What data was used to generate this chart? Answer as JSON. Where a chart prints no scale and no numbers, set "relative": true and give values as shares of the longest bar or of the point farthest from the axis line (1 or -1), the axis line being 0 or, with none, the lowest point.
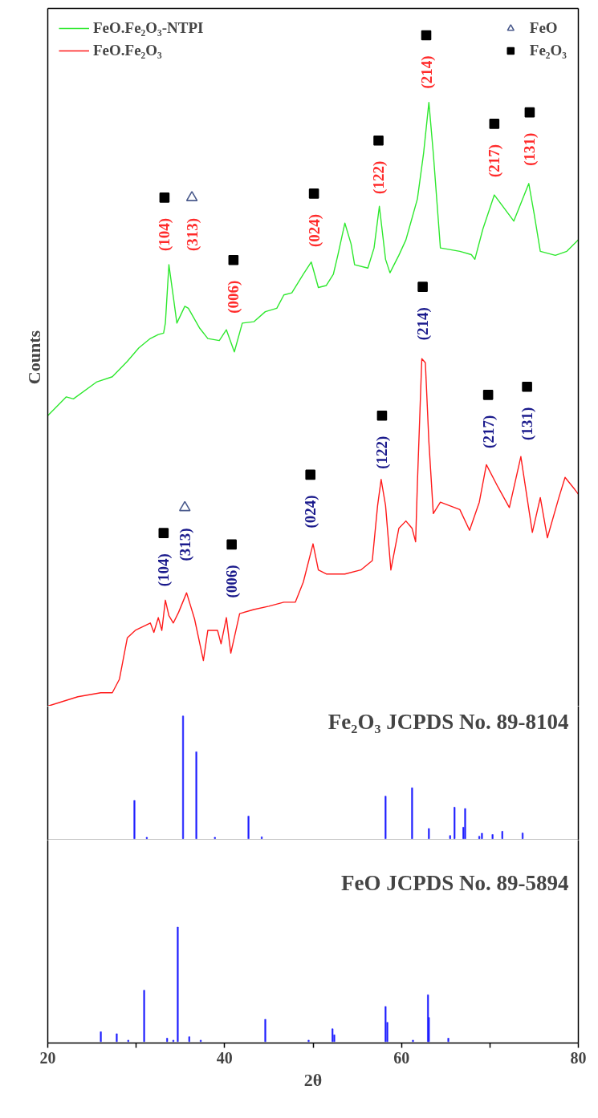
{
  "chart_data": [
    {
      "type": "line",
      "ylabel": "Counts",
      "relative": true,
      "xlim": [
        20,
        80
      ],
      "tick_labels": false,
      "legend": "top",
      "grid": false,
      "series": [
        {
          "name": "FeO.Fe₂O₃-NTPI",
          "color": "#2ee82e",
          "x": [
            20.0,
            22.1,
            22.9,
            25.5,
            27.3,
            29.0,
            30.3,
            31.6,
            32.5,
            33.1,
            33.3,
            33.7,
            34.2,
            34.6,
            35.5,
            35.9,
            37.2,
            38.1,
            39.4,
            40.2,
            41.1,
            42.0,
            43.3,
            44.6,
            45.9,
            46.7,
            47.6,
            48.9,
            49.8,
            50.6,
            51.5,
            52.3,
            52.8,
            53.6,
            54.3,
            54.7,
            56.2,
            56.9,
            57.5,
            58.2,
            58.7,
            59.7,
            60.5,
            61.8,
            62.5,
            63.1,
            63.6,
            64.4,
            66.6,
            67.9,
            68.3,
            69.2,
            70.5,
            72.7,
            74.4,
            75.0,
            75.7,
            77.4,
            78.7,
            80.0
          ],
          "values": [
            0.433,
            0.461,
            0.458,
            0.483,
            0.491,
            0.514,
            0.534,
            0.548,
            0.554,
            0.556,
            0.571,
            0.658,
            0.61,
            0.571,
            0.596,
            0.593,
            0.563,
            0.548,
            0.545,
            0.561,
            0.528,
            0.571,
            0.573,
            0.588,
            0.593,
            0.613,
            0.616,
            0.644,
            0.662,
            0.624,
            0.627,
            0.644,
            0.672,
            0.72,
            0.689,
            0.658,
            0.653,
            0.683,
            0.745,
            0.666,
            0.646,
            0.672,
            0.695,
            0.756,
            0.824,
            0.9,
            0.824,
            0.683,
            0.678,
            0.673,
            0.666,
            0.711,
            0.762,
            0.723,
            0.779,
            0.734,
            0.678,
            0.672,
            0.678,
            0.695
          ]
        },
        {
          "name": "FeO.Fe₂O₃",
          "color": "#ff1a1a",
          "x": [
            20.0,
            23.4,
            26.0,
            27.3,
            28.1,
            29.0,
            29.9,
            31.6,
            32.0,
            32.5,
            32.9,
            33.3,
            33.7,
            34.2,
            34.8,
            35.7,
            36.6,
            37.6,
            38.1,
            39.2,
            39.6,
            40.2,
            40.7,
            41.7,
            43.3,
            45.0,
            46.7,
            48.0,
            48.9,
            50.0,
            50.6,
            51.5,
            53.6,
            55.4,
            56.7,
            57.3,
            57.7,
            58.2,
            58.8,
            59.7,
            60.5,
            61.2,
            61.6,
            61.8,
            62.3,
            62.7,
            63.1,
            63.6,
            64.4,
            66.6,
            67.7,
            68.8,
            69.6,
            70.9,
            72.2,
            73.5,
            74.8,
            75.7,
            76.5,
            77.8,
            78.5,
            79.6,
            80.0
          ],
          "values": [
            0.0,
            0.014,
            0.02,
            0.02,
            0.04,
            0.102,
            0.113,
            0.124,
            0.11,
            0.132,
            0.113,
            0.158,
            0.135,
            0.124,
            0.14,
            0.169,
            0.13,
            0.068,
            0.113,
            0.113,
            0.093,
            0.132,
            0.079,
            0.138,
            0.144,
            0.149,
            0.155,
            0.155,
            0.185,
            0.242,
            0.203,
            0.197,
            0.197,
            0.203,
            0.217,
            0.299,
            0.338,
            0.299,
            0.203,
            0.265,
            0.276,
            0.265,
            0.245,
            0.332,
            0.518,
            0.512,
            0.394,
            0.287,
            0.304,
            0.293,
            0.262,
            0.304,
            0.36,
            0.327,
            0.296,
            0.372,
            0.259,
            0.311,
            0.251,
            0.311,
            0.341,
            0.323,
            0.316
          ]
        },
        {
          "type": "scatter",
          "name": "FeO",
          "color": "#4a5a8c",
          "marker": "triangle",
          "x": [
            36.3,
            35.5
          ],
          "values": [
            0.758,
            0.296
          ]
        },
        {
          "type": "scatter",
          "name": "Fe₂O₃",
          "color": "#000000",
          "marker": "square",
          "x": [
            33.2,
            41.0,
            50.1,
            57.4,
            62.8,
            70.5,
            74.5,
            33.1,
            40.8,
            49.7,
            57.8,
            62.4,
            69.8,
            74.2
          ],
          "values": [
            0.758,
            0.665,
            0.764,
            0.843,
            1.0,
            0.868,
            0.885,
            0.258,
            0.241,
            0.345,
            0.433,
            0.625,
            0.464,
            0.476
          ]
        }
      ],
      "annotations": [
        "(313)",
        "(313)",
        "(104)",
        "(006)",
        "(024)",
        "(122)",
        "(214)",
        "(217)",
        "(131)",
        "(104)",
        "(006)",
        "(024)",
        "(122)",
        "(214)",
        "(217)",
        "(131)"
      ]
    },
    {
      "type": "bar",
      "title": "Fe₂O₃ JCPDS No. 89-8104",
      "relative": true,
      "xlim": [
        20,
        80
      ],
      "tick_labels": false,
      "grid": false,
      "series": [
        {
          "color": "#1f1fff",
          "x": [
            29.8,
            31.2,
            35.3,
            36.8,
            38.9,
            42.7,
            44.2,
            58.2,
            61.2,
            63.1,
            65.5,
            66.0,
            67.0,
            67.2,
            68.8,
            69.1,
            70.3,
            71.4,
            73.7
          ],
          "values": [
            0.311,
            0.011,
            1.0,
            0.708,
            0.011,
            0.183,
            0.014,
            0.346,
            0.414,
            0.082,
            0.025,
            0.256,
            0.093,
            0.245,
            0.019,
            0.044,
            0.033,
            0.06,
            0.046
          ]
        }
      ]
    },
    {
      "type": "bar",
      "title": "FeO JCPDS No. 89-5894",
      "xlabel": "2θ",
      "relative": true,
      "xlim": [
        20,
        80
      ],
      "xticks": [
        20,
        {
          "value": 30,
          "label": null
        },
        40,
        {
          "value": 50,
          "label": null
        },
        60,
        {
          "value": 70,
          "label": null
        },
        80
      ],
      "tick_labels": "x",
      "grid": false,
      "series": [
        {
          "color": "#1f1fff",
          "x": [
            26.0,
            27.8,
            29.1,
            30.9,
            33.5,
            34.2,
            34.7,
            36.0,
            37.3,
            44.6,
            49.5,
            52.2,
            52.4,
            58.2,
            58.4,
            61.3,
            63.0,
            63.1,
            65.3
          ],
          "values": [
            0.086,
            0.069,
            0.013,
            0.449,
            0.03,
            0.013,
            1.0,
            0.043,
            0.013,
            0.195,
            0.013,
            0.112,
            0.059,
            0.307,
            0.168,
            0.013,
            0.409,
            0.211,
            0.03
          ]
        }
      ]
    }
  ]
}
